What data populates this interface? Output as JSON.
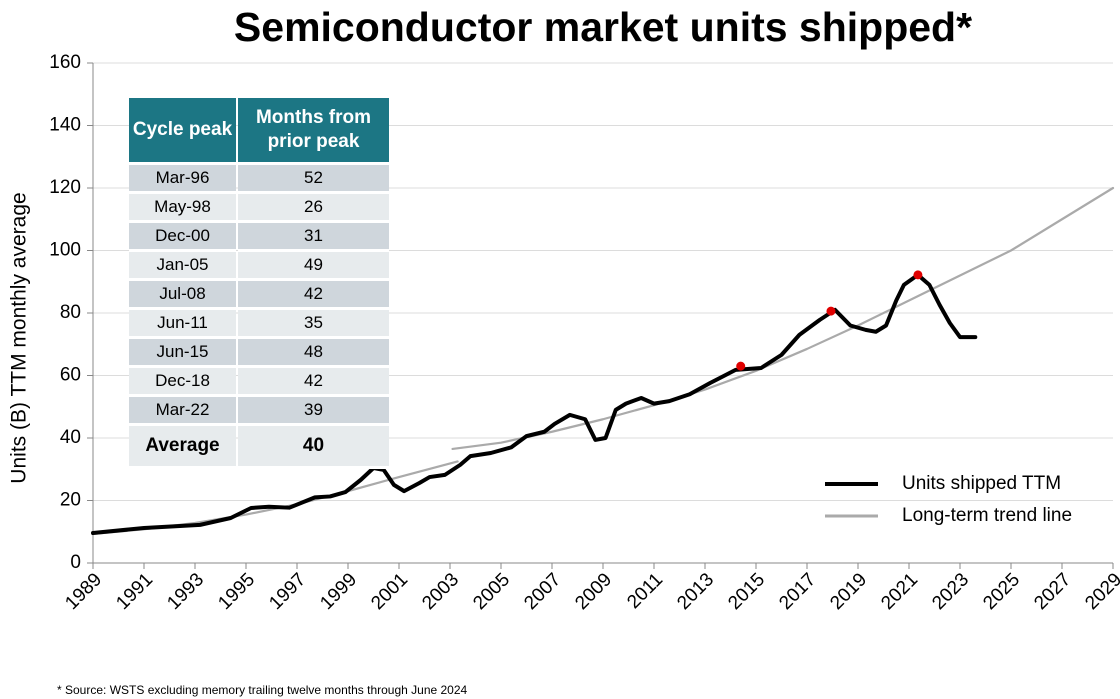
{
  "chart_data": {
    "type": "line",
    "title": "Semiconductor market units shipped*",
    "ylabel": "Units (B) TTM monthly average",
    "footnote": "* Source: WSTS excluding memory trailing twelve months through June 2024",
    "xlim": [
      1989,
      2029
    ],
    "xticks": [
      1989,
      1991,
      1993,
      1995,
      1997,
      1999,
      2001,
      2003,
      2005,
      2007,
      2009,
      2011,
      2013,
      2015,
      2017,
      2019,
      2021,
      2023,
      2025,
      2027,
      2029
    ],
    "ylim": [
      0,
      160
    ],
    "yticks": [
      0,
      20,
      40,
      60,
      80,
      100,
      120,
      140,
      160
    ],
    "grid": true,
    "legend_position": "lower right",
    "series": [
      {
        "name": "Units shipped TTM",
        "color": "#000000",
        "x": [
          1989,
          1991,
          1993.2,
          1994.4,
          1995.2,
          1995.9,
          1996.7,
          1997.7,
          1998.3,
          1998.9,
          1999.5,
          2000,
          2000.4,
          2000.8,
          2001.2,
          2001.8,
          2002.2,
          2002.8,
          2003.4,
          2003.8,
          2004.6,
          2005.4,
          2006,
          2006.7,
          2007.1,
          2007.7,
          2008.3,
          2008.7,
          2009.1,
          2009.5,
          2009.9,
          2010.5,
          2011,
          2011.6,
          2012.4,
          2013.2,
          2014.2,
          2015.2,
          2016,
          2016.7,
          2017.5,
          2018.1,
          2018.7,
          2019.3,
          2019.7,
          2020.1,
          2020.5,
          2020.8,
          2021.35,
          2021.8,
          2022.2,
          2022.6,
          2023,
          2023.6
        ],
        "values": [
          9.6,
          11.2,
          12.2,
          14.4,
          17.6,
          18,
          17.7,
          21,
          21.3,
          22.7,
          26.6,
          30.4,
          29.8,
          25,
          23,
          25.6,
          27.5,
          28.2,
          31.4,
          34.2,
          35.2,
          37,
          40.6,
          42,
          44.5,
          47.4,
          46,
          39.4,
          40,
          49,
          51,
          52.8,
          51,
          51.8,
          54,
          57.6,
          61.8,
          62.4,
          66.6,
          73,
          77.8,
          81,
          76,
          74.6,
          74,
          76,
          84,
          89,
          92.2,
          89,
          82.6,
          76.8,
          72.3,
          72.3
        ]
      },
      {
        "name": "Long-term trend line",
        "color": "#aaaaaa",
        "x": [
          1989,
          1991,
          1993,
          1995,
          1997,
          1999,
          2001,
          2003.3,
          2003.2,
          2003.1,
          2005,
          2007,
          2009,
          2011,
          2013,
          2015,
          2017,
          2019,
          2021,
          2023,
          2025,
          2027,
          2029
        ],
        "values": [
          9.3,
          10.8,
          12.8,
          15.5,
          18.8,
          23,
          27.5,
          32.5,
          null,
          36.5,
          38.5,
          42,
          46,
          50.5,
          55.5,
          61.5,
          68.5,
          76,
          84,
          92,
          100,
          110,
          120
        ]
      }
    ],
    "peak_markers": {
      "color": "#e00000",
      "x": [
        2014.4,
        2017.94,
        2021.35
      ],
      "values": [
        63,
        80.6,
        92.2
      ]
    },
    "table": {
      "header": [
        "Cycle peak",
        "Months from prior peak"
      ],
      "rows": [
        [
          "Mar-96",
          52
        ],
        [
          "May-98",
          26
        ],
        [
          "Dec-00",
          31
        ],
        [
          "Jan-05",
          49
        ],
        [
          "Jul-08",
          42
        ],
        [
          "Jun-11",
          35
        ],
        [
          "Jun-15",
          48
        ],
        [
          "Dec-18",
          42
        ],
        [
          "Mar-22",
          39
        ]
      ],
      "footer": [
        "Average",
        40
      ]
    }
  }
}
